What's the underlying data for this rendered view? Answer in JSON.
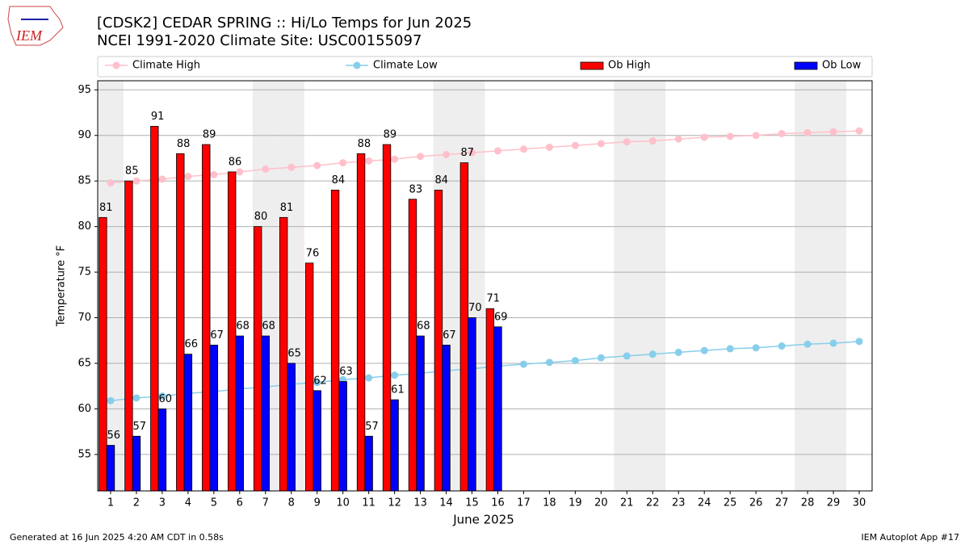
{
  "chart_data": {
    "type": "bar_line",
    "logo": "IEM",
    "title": "[CDSK2] CEDAR SPRING :: Hi/Lo Temps for Jun 2025",
    "subtitle": "NCEI 1991-2020 Climate Site: USC00155097",
    "xlabel": "June 2025",
    "ylabel": "Temperature °F",
    "x": [
      1,
      2,
      3,
      4,
      5,
      6,
      7,
      8,
      9,
      10,
      11,
      12,
      13,
      14,
      15,
      16,
      17,
      18,
      19,
      20,
      21,
      22,
      23,
      24,
      25,
      26,
      27,
      28,
      29,
      30
    ],
    "weekend_days": [
      1,
      7,
      8,
      14,
      15,
      21,
      22,
      28,
      29
    ],
    "series": [
      {
        "name": "Climate High",
        "kind": "line",
        "color": "#ffc0cb",
        "values": [
          84.8,
          85.0,
          85.2,
          85.5,
          85.7,
          86.0,
          86.3,
          86.5,
          86.7,
          87.0,
          87.2,
          87.4,
          87.7,
          87.9,
          88.1,
          88.3,
          88.5,
          88.7,
          88.9,
          89.1,
          89.3,
          89.4,
          89.6,
          89.8,
          89.9,
          90.0,
          90.2,
          90.3,
          90.4,
          90.5
        ]
      },
      {
        "name": "Climate Low",
        "kind": "line",
        "color": "#87ceeb",
        "values": [
          60.9,
          61.2,
          61.4,
          61.7,
          61.9,
          62.2,
          62.4,
          62.7,
          62.9,
          63.2,
          63.4,
          63.7,
          63.9,
          64.2,
          64.4,
          64.7,
          64.9,
          65.1,
          65.3,
          65.6,
          65.8,
          66.0,
          66.2,
          66.4,
          66.6,
          66.7,
          66.9,
          67.1,
          67.2,
          67.4
        ]
      },
      {
        "name": "Ob High",
        "kind": "bar",
        "color": "#ff0000",
        "values": [
          81,
          85,
          91,
          88,
          89,
          86,
          80,
          81,
          76,
          84,
          88,
          89,
          83,
          84,
          87,
          71,
          null,
          null,
          null,
          null,
          null,
          null,
          null,
          null,
          null,
          null,
          null,
          null,
          null,
          null
        ]
      },
      {
        "name": "Ob Low",
        "kind": "bar",
        "color": "#0000ff",
        "values": [
          56,
          57,
          60,
          66,
          67,
          68,
          68,
          65,
          62,
          63,
          57,
          61,
          68,
          67,
          70,
          69,
          null,
          null,
          null,
          null,
          null,
          null,
          null,
          null,
          null,
          null,
          null,
          null,
          null,
          null
        ]
      }
    ],
    "xlim": [
      0.5,
      30.5
    ],
    "ylim": [
      51,
      96
    ],
    "xticks": [
      1,
      2,
      3,
      4,
      5,
      6,
      7,
      8,
      9,
      10,
      11,
      12,
      13,
      14,
      15,
      16,
      17,
      18,
      19,
      20,
      21,
      22,
      23,
      24,
      25,
      26,
      27,
      28,
      29,
      30
    ],
    "yticks": [
      55,
      60,
      65,
      70,
      75,
      80,
      85,
      90,
      95
    ],
    "grid": true,
    "footer_left": "Generated at 16 Jun 2025 4:20 AM CDT in 0.58s",
    "footer_right": "IEM Autoplot App #17"
  }
}
